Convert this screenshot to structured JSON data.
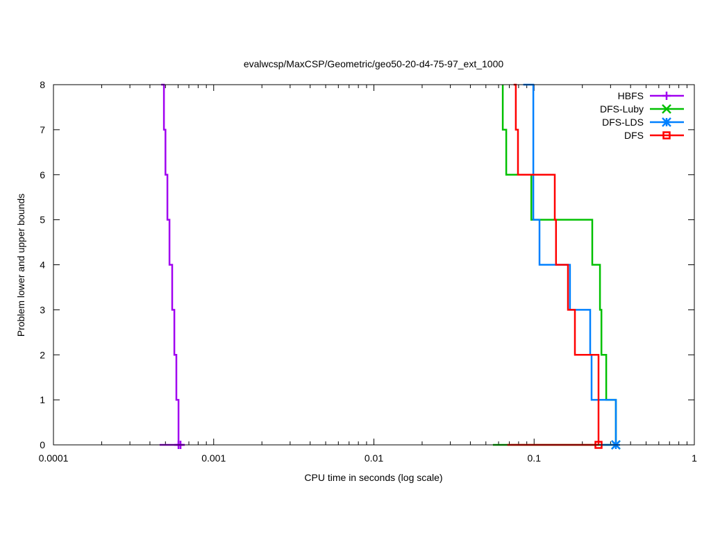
{
  "chart_data": {
    "type": "line",
    "title": "evalwcsp/MaxCSP/Geometric/geo50-20-d4-75-97_ext_1000",
    "xlabel": "CPU time in seconds (log scale)",
    "ylabel": "Problem lower and upper bounds",
    "xscale": "log",
    "xlim": [
      0.0001,
      1
    ],
    "ylim": [
      0,
      8
    ],
    "xticks": [
      {
        "value": 0.0001,
        "label": "0.0001"
      },
      {
        "value": 0.001,
        "label": "0.001"
      },
      {
        "value": 0.01,
        "label": "0.01"
      },
      {
        "value": 0.1,
        "label": "0.1"
      },
      {
        "value": 1,
        "label": "1"
      }
    ],
    "yticks": [
      {
        "value": 0,
        "label": "0"
      },
      {
        "value": 1,
        "label": "1"
      },
      {
        "value": 2,
        "label": "2"
      },
      {
        "value": 3,
        "label": "3"
      },
      {
        "value": 4,
        "label": "4"
      },
      {
        "value": 5,
        "label": "5"
      },
      {
        "value": 6,
        "label": "6"
      },
      {
        "value": 7,
        "label": "7"
      },
      {
        "value": 8,
        "label": "8"
      }
    ],
    "legend_position": "top-right",
    "series": [
      {
        "name": "HBFS",
        "color": "#a000f0",
        "marker": "plus",
        "upper": [
          [
            0.00047,
            8
          ],
          [
            0.000489,
            8
          ],
          [
            0.000489,
            7
          ],
          [
            0.0005,
            7
          ],
          [
            0.0005,
            6
          ],
          [
            0.000514,
            6
          ],
          [
            0.000514,
            5
          ],
          [
            0.00053,
            5
          ],
          [
            0.00053,
            4
          ],
          [
            0.000551,
            4
          ],
          [
            0.000551,
            3
          ],
          [
            0.000568,
            3
          ],
          [
            0.000568,
            2
          ],
          [
            0.000585,
            2
          ],
          [
            0.000585,
            1
          ],
          [
            0.000603,
            1
          ],
          [
            0.000603,
            0
          ],
          [
            0.000621,
            0
          ]
        ],
        "lower": [
          [
            0.00046,
            0
          ],
          [
            0.000621,
            0
          ],
          [
            0.00066,
            0
          ]
        ],
        "final_markers": [
          0.000603,
          0.000621
        ]
      },
      {
        "name": "DFS-Luby",
        "color": "#00c000",
        "marker": "x",
        "upper": [
          [
            0.0637,
            8
          ],
          [
            0.0637,
            7
          ],
          [
            0.067,
            7
          ],
          [
            0.067,
            6
          ],
          [
            0.096,
            6
          ],
          [
            0.096,
            5
          ],
          [
            0.2307,
            5
          ],
          [
            0.2307,
            4
          ],
          [
            0.2576,
            4
          ],
          [
            0.2576,
            3
          ],
          [
            0.263,
            3
          ],
          [
            0.263,
            2
          ],
          [
            0.2818,
            2
          ],
          [
            0.2818,
            1
          ],
          [
            0.3237,
            1
          ],
          [
            0.3237,
            0
          ]
        ],
        "lower": [
          [
            0.0553,
            0
          ],
          [
            0.3237,
            0
          ]
        ],
        "final_markers": [
          0.3237
        ]
      },
      {
        "name": "DFS-LDS",
        "color": "#0080ff",
        "marker": "star",
        "upper": [
          [
            0.0855,
            8
          ],
          [
            0.0989,
            8
          ],
          [
            0.0989,
            5
          ],
          [
            0.108,
            5
          ],
          [
            0.108,
            4
          ],
          [
            0.1675,
            4
          ],
          [
            0.1675,
            3
          ],
          [
            0.2239,
            3
          ],
          [
            0.2239,
            2
          ],
          [
            0.2283,
            2
          ],
          [
            0.2283,
            1
          ],
          [
            0.3237,
            1
          ],
          [
            0.3237,
            0
          ]
        ],
        "lower": [
          [
            0.2576,
            0
          ],
          [
            0.3237,
            0
          ]
        ],
        "final_markers": [
          0.3237
        ]
      },
      {
        "name": "DFS",
        "color": "#ff0000",
        "marker": "square",
        "upper": [
          [
            0.0745,
            8
          ],
          [
            0.0769,
            8
          ],
          [
            0.0769,
            7
          ],
          [
            0.0793,
            7
          ],
          [
            0.0793,
            6
          ],
          [
            0.1346,
            6
          ],
          [
            0.1346,
            5
          ],
          [
            0.137,
            5
          ],
          [
            0.137,
            4
          ],
          [
            0.1626,
            4
          ],
          [
            0.1626,
            3
          ],
          [
            0.1798,
            3
          ],
          [
            0.1798,
            2
          ],
          [
            0.2523,
            2
          ],
          [
            0.2523,
            0
          ]
        ],
        "lower": [
          [
            0.068,
            0
          ],
          [
            0.2523,
            0
          ]
        ],
        "final_markers": [
          0.2523
        ]
      }
    ]
  }
}
